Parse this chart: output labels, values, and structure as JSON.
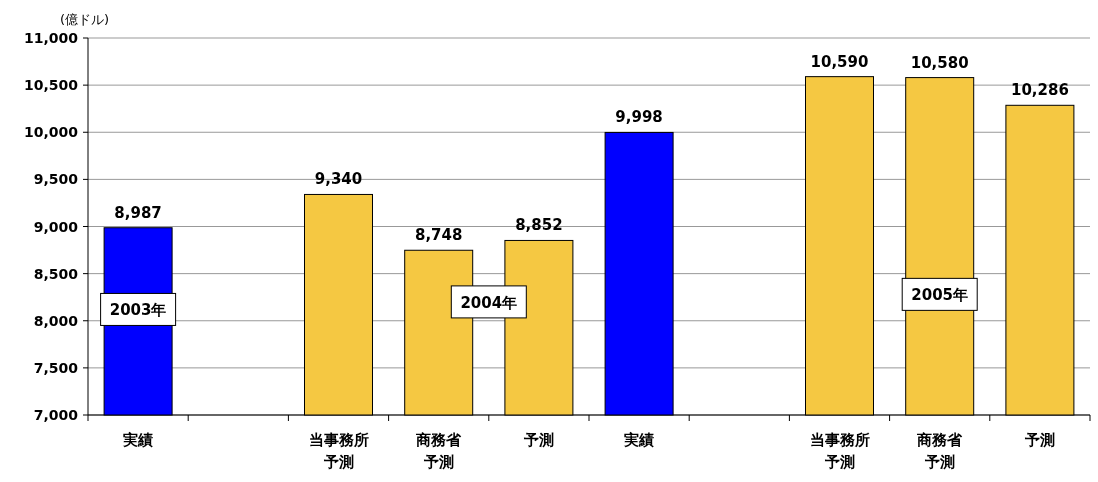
{
  "chart_data": {
    "type": "bar",
    "ylabel": "(億ドル)",
    "categories": [
      "実績",
      null,
      "当事務所予測",
      "商務省予測",
      "予測",
      "実績",
      null,
      "当事務所予測",
      "商務省予測",
      "予測"
    ],
    "values": [
      8987,
      null,
      9340,
      8748,
      8852,
      9998,
      null,
      10590,
      10580,
      10286
    ],
    "value_labels": [
      "8,987",
      null,
      "9,340",
      "8,748",
      "8,852",
      "9,998",
      null,
      "10,590",
      "10,580",
      "10,286"
    ],
    "colors": [
      "#0000ff",
      null,
      "#f5c842",
      "#f5c842",
      "#f5c842",
      "#0000ff",
      null,
      "#f5c842",
      "#f5c842",
      "#f5c842"
    ],
    "ylim": [
      7000,
      11000
    ],
    "yticks": [
      {
        "value": 7000,
        "label": "7,000"
      },
      {
        "value": 7500,
        "label": "7,500"
      },
      {
        "value": 8000,
        "label": "8,000"
      },
      {
        "value": 8500,
        "label": "8,500"
      },
      {
        "value": 9000,
        "label": "9,000"
      },
      {
        "value": 9500,
        "label": "9,500"
      },
      {
        "value": 10000,
        "label": "10,000"
      },
      {
        "value": 10500,
        "label": "10,500"
      },
      {
        "value": 11000,
        "label": "11,000"
      }
    ],
    "grid": "y",
    "annotations": [
      "2003年",
      "2004年",
      "2005年"
    ]
  }
}
